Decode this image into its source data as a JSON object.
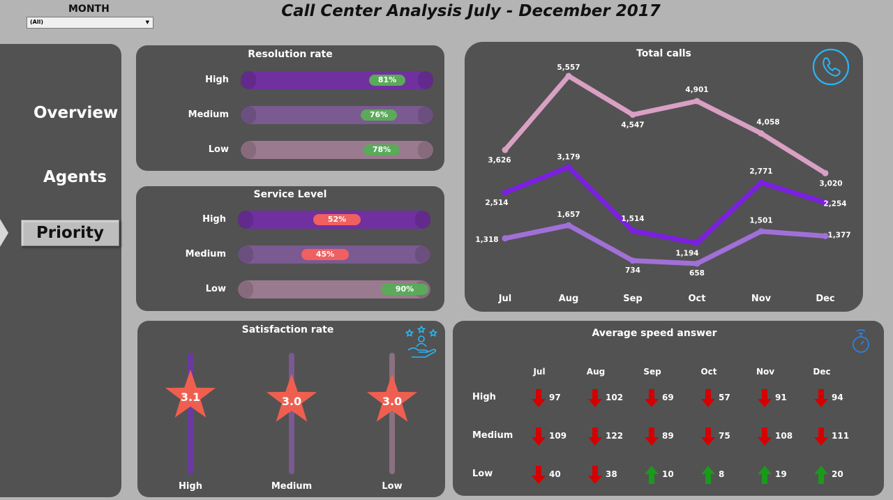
{
  "filter": {
    "label": "MONTH",
    "value": "(All)"
  },
  "title": "Call Center Analysis July - December 2017",
  "nav": {
    "overview": "Overview",
    "agents": "Agents",
    "priority": "Priority"
  },
  "resolution": {
    "title": "Resolution rate",
    "rows": [
      {
        "label": "High",
        "value": "81%",
        "color": "#7030a0"
      },
      {
        "label": "Medium",
        "value": "76%",
        "color": "#7a5a90"
      },
      {
        "label": "Low",
        "value": "78%",
        "color": "#9a7a8e"
      }
    ]
  },
  "service": {
    "title": "Service Level",
    "rows": [
      {
        "label": "High",
        "value": "52%",
        "color": "#7030a0"
      },
      {
        "label": "Medium",
        "value": "45%",
        "color": "#7a5a90"
      },
      {
        "label": "Low",
        "value": "90%",
        "color": "#9a7a8e"
      }
    ]
  },
  "satisfaction": {
    "title": "Satisfaction rate",
    "items": [
      {
        "label": "High",
        "value": "3.1"
      },
      {
        "label": "Medium",
        "value": "3.0"
      },
      {
        "label": "Low",
        "value": "3.0"
      }
    ]
  },
  "chart_data": {
    "type": "line",
    "title": "Total calls",
    "categories": [
      "Jul",
      "Aug",
      "Sep",
      "Oct",
      "Nov",
      "Dec"
    ],
    "series": [
      {
        "values": [
          3626,
          5557,
          4547,
          4901,
          4058,
          3020
        ],
        "labels": [
          "3,626",
          "5,557",
          "4,547",
          "4,901",
          "4,058",
          "3,020"
        ],
        "color": "#d9a0c4"
      },
      {
        "values": [
          2514,
          3179,
          1514,
          1194,
          2771,
          2254
        ],
        "labels": [
          "2,514",
          "3,179",
          "1,514",
          "1,194",
          "2,771",
          "2,254"
        ],
        "color": "#7b1fe0"
      },
      {
        "values": [
          1318,
          1657,
          734,
          658,
          1501,
          1377
        ],
        "labels": [
          "1,318",
          "1,657",
          "734",
          "658",
          "1,501",
          "1,377"
        ],
        "color": "#a070d8"
      }
    ]
  },
  "asa": {
    "title": "Average speed answer",
    "months": [
      "Jul",
      "Aug",
      "Sep",
      "Oct",
      "Nov",
      "Dec"
    ],
    "rows": [
      {
        "label": "High",
        "values": [
          "97",
          "102",
          "69",
          "57",
          "91",
          "94"
        ],
        "dirs": [
          "down",
          "down",
          "down",
          "down",
          "down",
          "down"
        ]
      },
      {
        "label": "Medium",
        "values": [
          "109",
          "122",
          "89",
          "75",
          "108",
          "111"
        ],
        "dirs": [
          "down",
          "down",
          "down",
          "down",
          "down",
          "down"
        ]
      },
      {
        "label": "Low",
        "values": [
          "40",
          "38",
          "10",
          "8",
          "19",
          "20"
        ],
        "dirs": [
          "down",
          "down",
          "up",
          "up",
          "up",
          "up"
        ]
      }
    ]
  },
  "colors": {
    "panel": "#525252",
    "background": "#b4b4b4",
    "badge_green": "#5aaa5a",
    "badge_red": "#f06060",
    "star": "#ef5f50",
    "arrow_down": "#d40000",
    "arrow_up": "#1a9a1a",
    "icon_blue": "#29b6f6"
  },
  "icons": {
    "phone": "phone-icon",
    "satisfaction": "satisfaction-hand-icon",
    "stopwatch": "stopwatch-icon"
  }
}
